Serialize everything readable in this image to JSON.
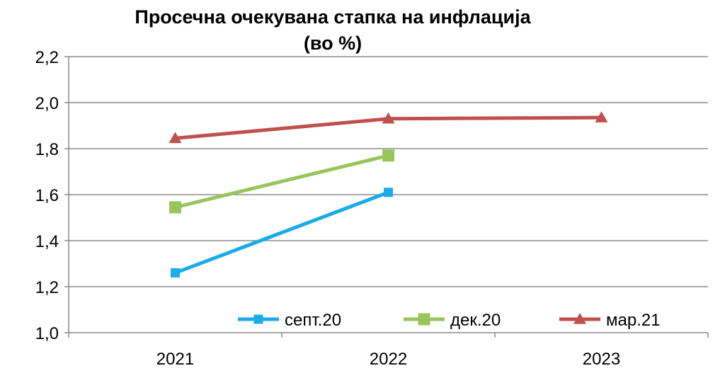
{
  "chart_data": {
    "type": "line",
    "title": "Просечна очекувана стапка на инфлација",
    "subtitle": "(во %)",
    "categories": [
      "2021",
      "2022",
      "2023"
    ],
    "ylim": [
      1.0,
      2.2
    ],
    "yticks": [
      "1,0",
      "1,2",
      "1,4",
      "1,6",
      "1,8",
      "2,0",
      "2,2"
    ],
    "ytick_values": [
      1.0,
      1.2,
      1.4,
      1.6,
      1.8,
      2.0,
      2.2
    ],
    "grid": true,
    "legend_position": "bottom-right inside",
    "series": [
      {
        "name": "септ.20",
        "color": "#1aabe8",
        "marker": "square-small",
        "values": [
          1.26,
          1.61,
          null
        ]
      },
      {
        "name": "дек.20",
        "color": "#98c45a",
        "marker": "square",
        "values": [
          1.545,
          1.77,
          null
        ]
      },
      {
        "name": "мар.21",
        "color": "#c0504d",
        "marker": "triangle",
        "values": [
          1.845,
          1.93,
          1.935
        ]
      }
    ]
  }
}
